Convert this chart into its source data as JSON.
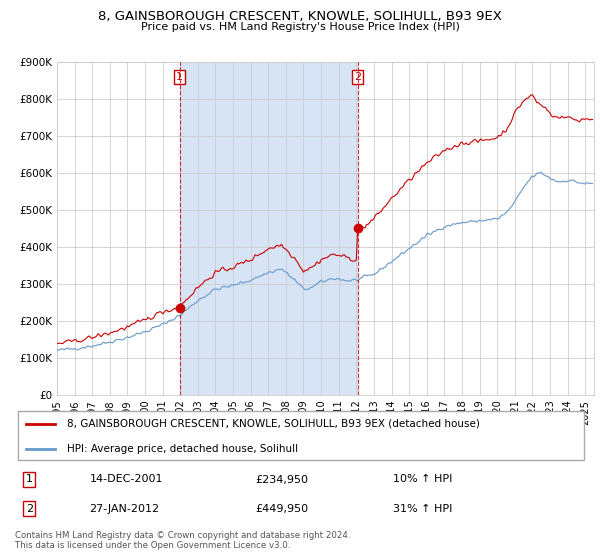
{
  "title": "8, GAINSBOROUGH CRESCENT, KNOWLE, SOLIHULL, B93 9EX",
  "subtitle": "Price paid vs. HM Land Registry's House Price Index (HPI)",
  "footer": "Contains HM Land Registry data © Crown copyright and database right 2024.\nThis data is licensed under the Open Government Licence v3.0.",
  "legend_line1": "8, GAINSBOROUGH CRESCENT, KNOWLE, SOLIHULL, B93 9EX (detached house)",
  "legend_line2": "HPI: Average price, detached house, Solihull",
  "sale1_date_label": "14-DEC-2001",
  "sale1_price_label": "£234,950",
  "sale1_hpi_label": "10% ↑ HPI",
  "sale2_date_label": "27-JAN-2012",
  "sale2_price_label": "£449,950",
  "sale2_hpi_label": "31% ↑ HPI",
  "red_color": "#cc0000",
  "blue_color": "#6699cc",
  "shade_color": "#d6e4f5",
  "grid_color": "#cccccc",
  "plot_bg": "#ffffff",
  "fig_bg": "#ffffff",
  "ylim": [
    0,
    900000
  ],
  "yticks": [
    0,
    100000,
    200000,
    300000,
    400000,
    500000,
    600000,
    700000,
    800000,
    900000
  ],
  "ytick_labels": [
    "£0",
    "£100K",
    "£200K",
    "£300K",
    "£400K",
    "£500K",
    "£600K",
    "£700K",
    "£800K",
    "£900K"
  ],
  "sale1_x": 2001.958,
  "sale1_y": 234950,
  "sale2_x": 2012.075,
  "sale2_y": 449950,
  "xmin": 1995.0,
  "xmax": 2025.5
}
